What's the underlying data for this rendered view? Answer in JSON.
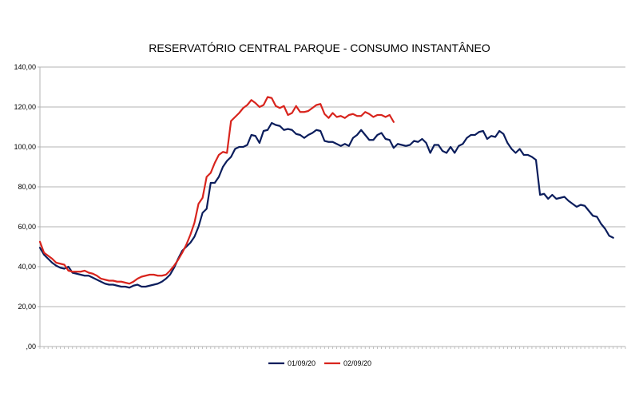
{
  "chart_data": {
    "type": "line",
    "title": "RESERVATÓRIO CENTRAL PARQUE - CONSUMO INSTANTÂNEO",
    "xlabel": "",
    "ylabel": "",
    "ylim": [
      0,
      140
    ],
    "y_ticks": [
      ",00",
      "20,00",
      "40,00",
      "60,00",
      "80,00",
      "100,00",
      "120,00",
      "140,00"
    ],
    "x_points": 145,
    "grid": "horizontal",
    "legend_position": "bottom",
    "series": [
      {
        "name": "01/09/20",
        "color": "#0b1d5c",
        "values": [
          49.5,
          46,
          44,
          42,
          40.5,
          39.5,
          39,
          40,
          37,
          36.5,
          36,
          35.5,
          35.5,
          34.5,
          33.5,
          32.5,
          31.5,
          31,
          31,
          30.5,
          30,
          30,
          29.5,
          30.5,
          31,
          30,
          30,
          30.5,
          31,
          31.5,
          32.5,
          34,
          36,
          39.5,
          44,
          48,
          50,
          52,
          55,
          60,
          67,
          69,
          82,
          82,
          85,
          90,
          93,
          95,
          99,
          100,
          100,
          101,
          106,
          105.5,
          102,
          108,
          108.5,
          112,
          111,
          110.5,
          108.5,
          109,
          108.5,
          106.5,
          106,
          104.5,
          106,
          107,
          108.5,
          108,
          103,
          102.5,
          102.5,
          101.5,
          100.5,
          101.5,
          100.5,
          104.5,
          106,
          108.5,
          106,
          103.5,
          103.5,
          106,
          107,
          104,
          103.5,
          99.5,
          101.5,
          101,
          100.5,
          101,
          103,
          102.5,
          104,
          102,
          97,
          101,
          101,
          98,
          97,
          100,
          97,
          100.5,
          101.5,
          104.5,
          106,
          106,
          107.5,
          108,
          104,
          105.5,
          105,
          108,
          106.5,
          102,
          99,
          97,
          99,
          96,
          96,
          95,
          93.5,
          76,
          76.5,
          74,
          76,
          74,
          74.5,
          75,
          73,
          71.5,
          70,
          71,
          70.5,
          68,
          65.5,
          65,
          61.5,
          59,
          55.5,
          54.5
        ]
      },
      {
        "name": "02/09/20",
        "color": "#d8241d",
        "values": [
          52.5,
          47,
          45.5,
          44,
          42,
          41.5,
          41,
          38,
          37.5,
          37.5,
          37.5,
          38,
          37,
          36.5,
          35.5,
          34,
          33.5,
          33,
          33,
          32.5,
          32.5,
          32,
          31.5,
          32.5,
          34,
          35,
          35.5,
          36,
          36,
          35.5,
          35.5,
          36,
          38,
          40.5,
          43.5,
          47,
          51,
          56,
          62,
          71.5,
          74.5,
          85,
          87,
          92,
          96,
          97.5,
          97,
          113,
          115,
          117,
          119.5,
          121,
          123.5,
          122,
          120,
          121,
          125,
          124.5,
          120.5,
          119.5,
          120.5,
          116,
          117,
          120.5,
          117.5,
          117.5,
          118,
          119.5,
          121,
          121.5,
          116.5,
          114.5,
          117,
          115,
          115.5,
          114.5,
          116,
          116.5,
          115.5,
          115.5,
          117.5,
          116.5,
          115,
          116,
          116,
          115,
          116,
          112.5
        ]
      }
    ]
  }
}
